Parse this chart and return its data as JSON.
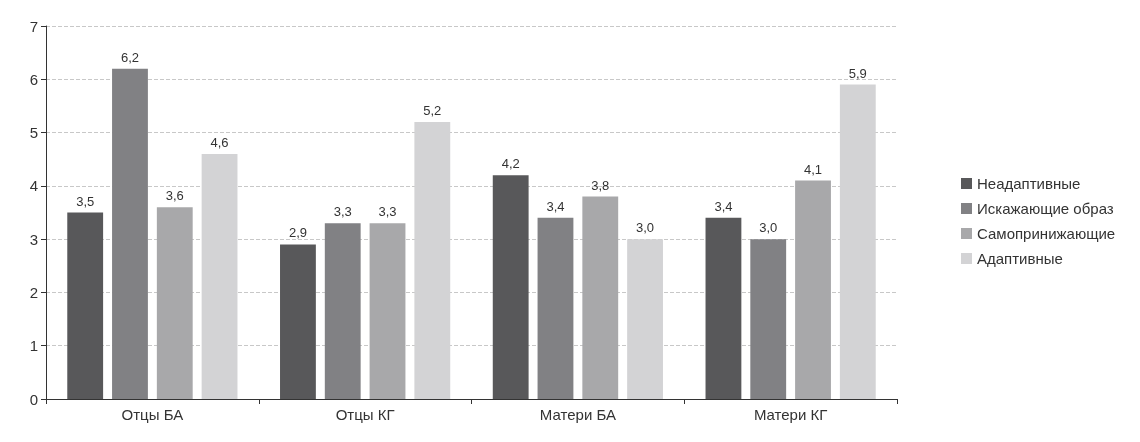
{
  "chart_data": {
    "type": "bar",
    "categories": [
      "Отцы БА",
      "Отцы КГ",
      "Матери БА",
      "Матери КГ"
    ],
    "series": [
      {
        "name": "Неадаптивные",
        "color": "#58585a",
        "values": [
          3.5,
          2.9,
          4.2,
          3.4
        ],
        "value_labels": [
          "3,5",
          "2,9",
          "4,2",
          "3,4"
        ]
      },
      {
        "name": "Искажающие образ",
        "color": "#818184",
        "values": [
          6.2,
          3.3,
          3.4,
          3.0
        ],
        "value_labels": [
          "6,2",
          "3,3",
          "3,4",
          "3,0"
        ]
      },
      {
        "name": "Самопринижающие",
        "color": "#a8a8aa",
        "values": [
          3.6,
          3.3,
          3.8,
          4.1
        ],
        "value_labels": [
          "3,6",
          "3,3",
          "3,8",
          "4,1"
        ]
      },
      {
        "name": "Адаптивные",
        "color": "#d3d3d5",
        "values": [
          4.6,
          5.2,
          3.0,
          5.9
        ],
        "value_labels": [
          "4,6",
          "5,2",
          "3,0",
          "5,9"
        ]
      }
    ],
    "ylim": [
      0,
      7
    ],
    "yticks": [
      0,
      1,
      2,
      3,
      4,
      5,
      6,
      7
    ],
    "grid": "y",
    "legend": "right"
  }
}
